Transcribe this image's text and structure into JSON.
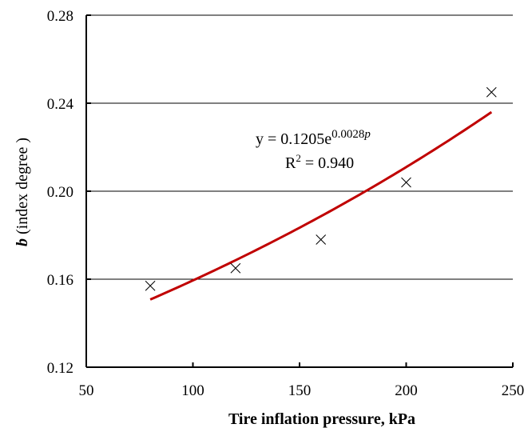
{
  "chart_data": {
    "type": "scatter",
    "xlabel": "Tire inflation pressure, kPa",
    "ylabel": {
      "var": "b",
      "rest": " (index degree )"
    },
    "xlim": [
      50,
      250
    ],
    "ylim": [
      0.12,
      0.28
    ],
    "xticks": [
      50,
      100,
      150,
      200,
      250
    ],
    "yticks": [
      0.12,
      0.16,
      0.2,
      0.24,
      0.28
    ],
    "ytick_labels": [
      "0.12",
      "0.16",
      "0.20",
      "0.24",
      "0.28"
    ],
    "grid": "horizontal",
    "series": [
      {
        "marker": "x",
        "x": [
          80,
          120,
          160,
          200,
          240
        ],
        "y": [
          0.157,
          0.165,
          0.178,
          0.204,
          0.245
        ]
      }
    ],
    "trendline": {
      "type": "exponential",
      "a": 0.1205,
      "k": 0.0028,
      "x_range": [
        80,
        240
      ],
      "color": "#c00000"
    },
    "annotation": {
      "equation_prefix": "y = 0.1205e",
      "equation_exponent": "0.0028",
      "equation_exponent_var": "p",
      "r2_prefix": "R",
      "r2_sup": "2",
      "r2_value": " = 0.940"
    }
  }
}
